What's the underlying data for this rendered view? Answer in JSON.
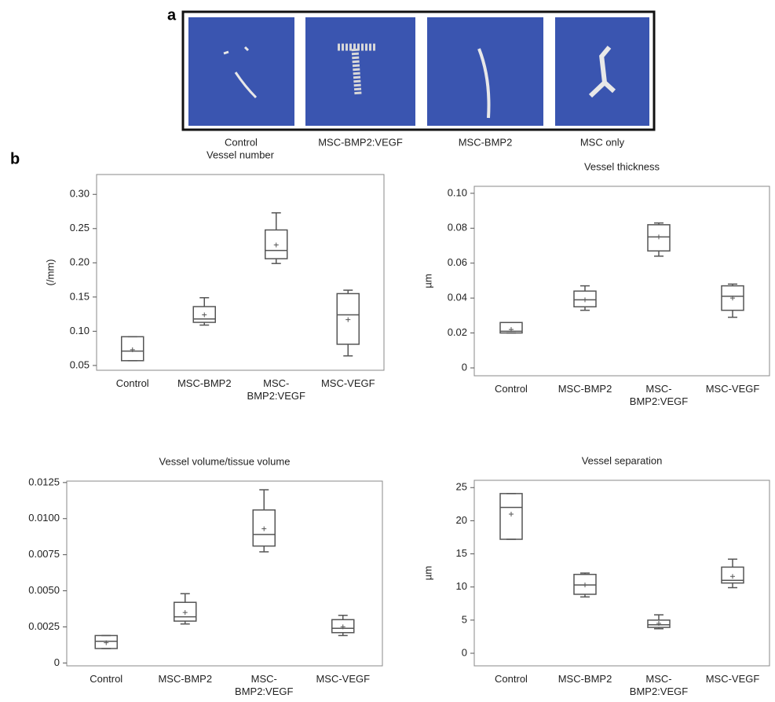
{
  "panel_a": {
    "label": "a",
    "labels": [
      "Control",
      "MSC-BMP2:VEGF",
      "MSC-BMP2",
      "MSC only"
    ]
  },
  "panel_b_label": "b",
  "chart_data": [
    {
      "type": "box",
      "title": "Vessel number",
      "y_label": "(/mm)",
      "color": "#555555",
      "categories": [
        [
          "Control"
        ],
        [
          "MSC-BMP2"
        ],
        [
          "MSC-",
          "BMP2:VEGF"
        ],
        [
          "MSC-VEGF"
        ]
      ],
      "boxes": [
        {
          "min": 0.057,
          "q1": 0.057,
          "median": 0.071,
          "q3": 0.092,
          "max": 0.092,
          "mean": 0.073
        },
        {
          "min": 0.109,
          "q1": 0.113,
          "median": 0.118,
          "q3": 0.136,
          "max": 0.149,
          "mean": 0.124
        },
        {
          "min": 0.199,
          "q1": 0.206,
          "median": 0.218,
          "q3": 0.248,
          "max": 0.273,
          "mean": 0.226
        },
        {
          "min": 0.064,
          "q1": 0.081,
          "median": 0.124,
          "q3": 0.155,
          "max": 0.16,
          "mean": 0.117
        }
      ],
      "ylim": [
        0.043,
        0.329
      ],
      "yticks": [
        0.05,
        {
          "value": 0.1,
          "label": "0.10"
        },
        0.15,
        {
          "value": 0.2,
          "label": "0.20"
        },
        0.25,
        {
          "value": 0.3,
          "label": "0.30"
        }
      ]
    },
    {
      "type": "box",
      "title": "Vessel thickness",
      "y_label": "µm",
      "color": "#555555",
      "categories": [
        [
          "Control"
        ],
        [
          "MSC-BMP2"
        ],
        [
          "MSC-",
          "BMP2:VEGF"
        ],
        [
          "MSC-VEGF"
        ]
      ],
      "boxes": [
        {
          "min": 0.02,
          "q1": 0.02,
          "median": 0.021,
          "q3": 0.026,
          "max": 0.026,
          "mean": 0.022
        },
        {
          "min": 0.033,
          "q1": 0.035,
          "median": 0.039,
          "q3": 0.044,
          "max": 0.047,
          "mean": 0.039
        },
        {
          "min": 0.064,
          "q1": 0.067,
          "median": 0.075,
          "q3": 0.082,
          "max": 0.083,
          "mean": 0.075
        },
        {
          "min": 0.029,
          "q1": 0.033,
          "median": 0.041,
          "q3": 0.047,
          "max": 0.048,
          "mean": 0.04
        }
      ],
      "ylim": [
        -0.0045,
        0.104
      ],
      "yticks": [
        0,
        0.02,
        0.04,
        0.06,
        0.08,
        {
          "value": 0.1,
          "label": "0.10"
        }
      ]
    },
    {
      "type": "box",
      "title": "Vessel volume/tissue volume",
      "color": "#555555",
      "categories": [
        [
          "Control"
        ],
        [
          "MSC-BMP2"
        ],
        [
          "MSC-",
          "BMP2:VEGF"
        ],
        [
          "MSC-VEGF"
        ]
      ],
      "boxes": [
        {
          "min": 0.001,
          "q1": 0.001,
          "median": 0.0015,
          "q3": 0.0019,
          "max": 0.0019,
          "mean": 0.0014
        },
        {
          "min": 0.0027,
          "q1": 0.0029,
          "median": 0.0032,
          "q3": 0.0042,
          "max": 0.0048,
          "mean": 0.0035
        },
        {
          "min": 0.0077,
          "q1": 0.0081,
          "median": 0.0089,
          "q3": 0.0106,
          "max": 0.012,
          "mean": 0.0093
        },
        {
          "min": 0.0019,
          "q1": 0.0021,
          "median": 0.0024,
          "q3": 0.003,
          "max": 0.0033,
          "mean": 0.0025
        }
      ],
      "ylim": [
        -0.0002,
        0.0126
      ],
      "yticks": [
        0,
        0.0025,
        {
          "value": 0.005,
          "label": "0.0050"
        },
        0.0075,
        {
          "value": 0.01,
          "label": "0.0100"
        },
        0.0125
      ]
    },
    {
      "type": "box",
      "title": "Vessel separation",
      "y_label": "µm",
      "color": "#555555",
      "categories": [
        [
          "Control"
        ],
        [
          "MSC-BMP2"
        ],
        [
          "MSC-",
          "BMP2:VEGF"
        ],
        [
          "MSC-VEGF"
        ]
      ],
      "boxes": [
        {
          "min": 17.2,
          "q1": 17.2,
          "median": 22,
          "q3": 24.1,
          "max": 24.1,
          "mean": 21
        },
        {
          "min": 8.5,
          "q1": 8.9,
          "median": 10.3,
          "q3": 11.9,
          "max": 12.1,
          "mean": 10.3
        },
        {
          "min": 3.7,
          "q1": 3.9,
          "median": 4.3,
          "q3": 5,
          "max": 5.8,
          "mean": 4.5
        },
        {
          "min": 9.9,
          "q1": 10.6,
          "median": 11,
          "q3": 13,
          "max": 14.2,
          "mean": 11.6
        }
      ],
      "ylim": [
        -1.9,
        26.1
      ],
      "yticks": [
        0,
        5,
        10,
        15,
        20,
        25
      ]
    }
  ]
}
